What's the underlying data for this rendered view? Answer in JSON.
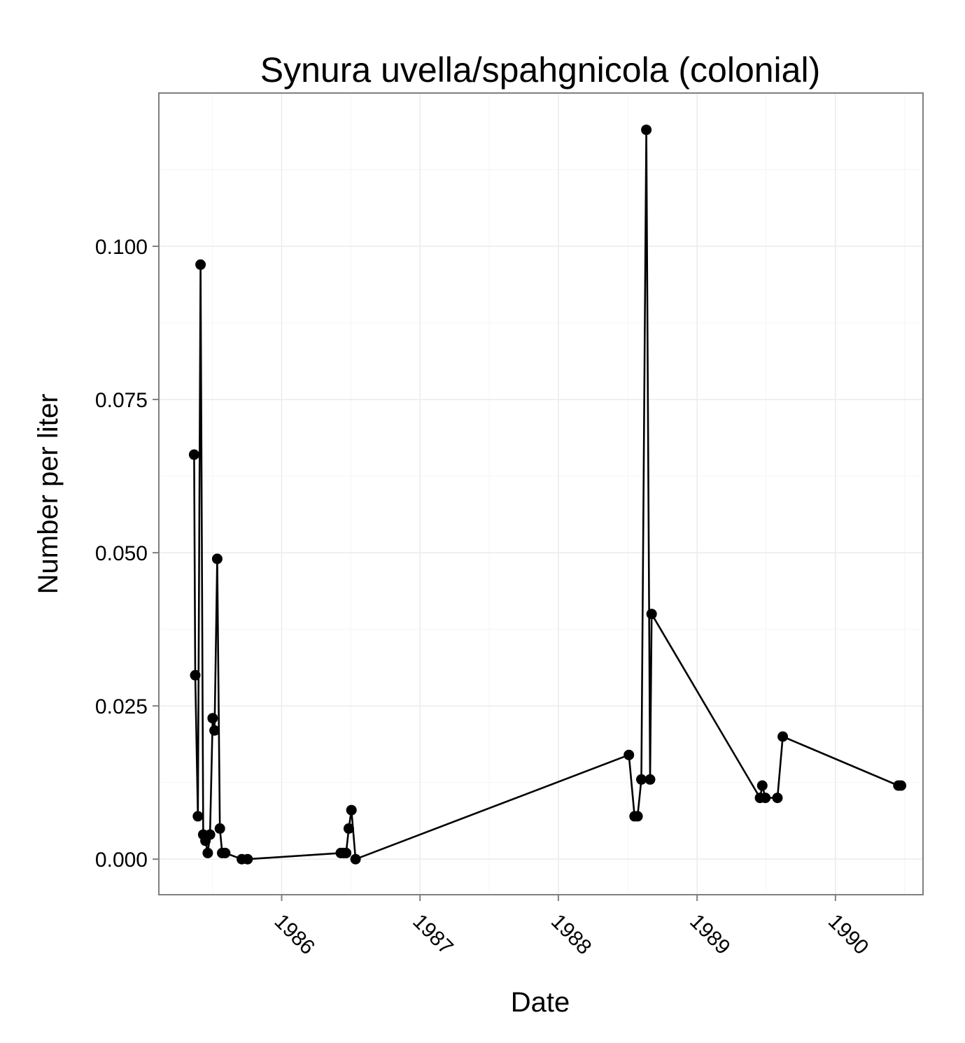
{
  "chart_data": {
    "type": "line",
    "title": "Synura uvella/spahgnicola (colonial)",
    "xlabel": "Date",
    "ylabel": "Number per liter",
    "x_is_date": true,
    "xlim": [
      "1985-02-11",
      "1990-08-20"
    ],
    "ylim": [
      -0.0058,
      0.125
    ],
    "xticks": [
      {
        "label": "1986",
        "value": "1986-01-01"
      },
      {
        "label": "1987",
        "value": "1987-01-01"
      },
      {
        "label": "1988",
        "value": "1988-01-01"
      },
      {
        "label": "1989",
        "value": "1989-01-01"
      },
      {
        "label": "1990",
        "value": "1990-01-01"
      }
    ],
    "yticks": [
      {
        "label": "0.000",
        "value": 0.0
      },
      {
        "label": "0.025",
        "value": 0.025
      },
      {
        "label": "0.050",
        "value": 0.05
      },
      {
        "label": "0.075",
        "value": 0.075
      },
      {
        "label": "0.100",
        "value": 0.1
      }
    ],
    "grid": true,
    "legend": "none",
    "colors": {
      "line": "#000000",
      "point": "#000000",
      "panel_border": "#7f7f7f",
      "grid_major": "#ebebeb",
      "grid_minor": "#f5f5f5",
      "tick": "#7f7f7f"
    },
    "series": [
      {
        "points": [
          {
            "x": "1985-05-15",
            "y": 0.066
          },
          {
            "x": "1985-05-18",
            "y": 0.03
          },
          {
            "x": "1985-05-25",
            "y": 0.007
          },
          {
            "x": "1985-06-01",
            "y": 0.097
          },
          {
            "x": "1985-06-08",
            "y": 0.004
          },
          {
            "x": "1985-06-14",
            "y": 0.003
          },
          {
            "x": "1985-06-20",
            "y": 0.001
          },
          {
            "x": "1985-06-26",
            "y": 0.004
          },
          {
            "x": "1985-07-03",
            "y": 0.023
          },
          {
            "x": "1985-07-08",
            "y": 0.021
          },
          {
            "x": "1985-07-15",
            "y": 0.049
          },
          {
            "x": "1985-07-22",
            "y": 0.005
          },
          {
            "x": "1985-07-28",
            "y": 0.001
          },
          {
            "x": "1985-08-05",
            "y": 0.001
          },
          {
            "x": "1985-09-18",
            "y": 0.0
          },
          {
            "x": "1985-10-03",
            "y": 0.0
          },
          {
            "x": "1986-06-06",
            "y": 0.001
          },
          {
            "x": "1986-06-13",
            "y": 0.001
          },
          {
            "x": "1986-06-20",
            "y": 0.001
          },
          {
            "x": "1986-06-27",
            "y": 0.005
          },
          {
            "x": "1986-07-04",
            "y": 0.008
          },
          {
            "x": "1986-07-15",
            "y": 0.0
          },
          {
            "x": "1988-07-05",
            "y": 0.017
          },
          {
            "x": "1988-07-20",
            "y": 0.007
          },
          {
            "x": "1988-07-28",
            "y": 0.007
          },
          {
            "x": "1988-08-07",
            "y": 0.013
          },
          {
            "x": "1988-08-20",
            "y": 0.119
          },
          {
            "x": "1988-08-30",
            "y": 0.013
          },
          {
            "x": "1988-09-03",
            "y": 0.04
          },
          {
            "x": "1989-06-16",
            "y": 0.01
          },
          {
            "x": "1989-06-22",
            "y": 0.012
          },
          {
            "x": "1989-06-30",
            "y": 0.01
          },
          {
            "x": "1989-08-01",
            "y": 0.01
          },
          {
            "x": "1989-08-15",
            "y": 0.02
          },
          {
            "x": "1990-06-16",
            "y": 0.012
          },
          {
            "x": "1990-06-23",
            "y": 0.012
          }
        ]
      }
    ]
  }
}
